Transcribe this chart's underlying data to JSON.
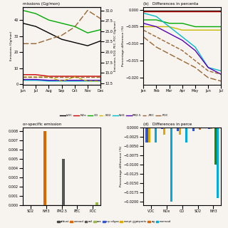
{
  "panel_a_title": "missions (Gg/mon)",
  "panel_b_title": "(b)   Differences in percenta",
  "panel_c_title": "or-specific emission",
  "panel_d_title": "(d)   Differences in perce",
  "months_a": [
    "Jun",
    "Jul",
    "Aug",
    "Sep",
    "Oct",
    "Nov",
    "Dec"
  ],
  "months_b": [
    "Jan",
    "Feb",
    "Mar",
    "Apr",
    "May",
    "Jun",
    "Jul"
  ],
  "voc": [
    38,
    36,
    32,
    28,
    26,
    24,
    27
  ],
  "nox": [
    6,
    6,
    5,
    5,
    5,
    5,
    5
  ],
  "co": [
    46,
    44,
    40,
    38,
    36,
    32,
    34
  ],
  "nh3": [
    2.5,
    2.5,
    2.0,
    2.0,
    2.0,
    2.0,
    2.0
  ],
  "pm25": [
    3.0,
    3.0,
    2.5,
    2.5,
    2.5,
    2.5,
    2.5
  ],
  "so2_right": [
    14,
    14,
    14,
    13,
    14,
    13,
    13
  ],
  "pec_right": [
    14,
    14,
    14,
    14,
    14,
    14,
    14
  ],
  "poc_right": [
    22,
    22,
    23,
    24,
    26,
    30,
    28
  ],
  "b_co": [
    -0.0002,
    -0.0002,
    -0.0002,
    -0.0002,
    -0.0002,
    -0.0002,
    -0.0002
  ],
  "b_so2": [
    -0.0005,
    -0.0005,
    -0.0005,
    -0.0005,
    -0.0005,
    -0.0005,
    -0.0005
  ],
  "b_nox": [
    -0.003,
    -0.003,
    -0.004,
    -0.004,
    -0.005,
    -0.005,
    -0.005
  ],
  "b_voc": [
    -0.005,
    -0.005,
    -0.005,
    -0.006,
    -0.006,
    -0.006,
    -0.006
  ],
  "b_nh3": [
    -0.001,
    -0.002,
    -0.005,
    -0.008,
    -0.011,
    -0.017,
    -0.018
  ],
  "b_pm25": [
    -0.004,
    -0.005,
    -0.007,
    -0.009,
    -0.012,
    -0.017,
    -0.019
  ],
  "b_pec": [
    -0.006,
    -0.008,
    -0.01,
    -0.012,
    -0.015,
    -0.018,
    -0.019
  ],
  "b_poc": [
    -0.008,
    -0.011,
    -0.013,
    -0.015,
    -0.017,
    -0.02,
    -0.021
  ],
  "c_species": [
    "SO2",
    "NH3",
    "PM2.5",
    "PEC",
    "POC"
  ],
  "c_afdust": [
    0.0,
    0.0,
    0.0,
    0.0,
    0.0
  ],
  "c_onroad": [
    0.0,
    0.008,
    0.0,
    0.0,
    0.0
  ],
  "c_rail": [
    0.0,
    0.0,
    0.005,
    0.0,
    0.0
  ],
  "c_rwc": [
    0.0,
    0.0,
    0.0,
    0.0,
    0.0003
  ],
  "d_species": [
    "VOC",
    "NOx",
    "CO",
    "SO2",
    "NH3"
  ],
  "d_np_oilgas": [
    -0.004,
    -0.0005,
    -0.001,
    -0.001,
    -0.0005
  ],
  "d_nonpt": [
    -0.004,
    -0.002,
    -0.002,
    -0.0001,
    -0.0005
  ],
  "d_airports": [
    -0.0002,
    -0.0002,
    -0.0003,
    -0.0002,
    -0.0001
  ],
  "d_ag": [
    -0.0001,
    -0.0001,
    -0.0003,
    -0.0007,
    -0.0001
  ],
  "d_nonroad": [
    -0.004,
    -0.02,
    -0.004,
    -0.0002,
    -0.019
  ],
  "d_green": [
    0.0,
    0.0,
    0.0,
    0.0,
    -0.01
  ],
  "color_voc": "#000000",
  "color_nox": "#cc0000",
  "color_co": "#00aa00",
  "color_so2": "#ccbb00",
  "color_nh3": "#00bbcc",
  "color_pm25": "#5500bb",
  "color_pec": "#996633",
  "color_poc": "#996633",
  "color_afdust": "#444444",
  "color_onroad": "#dd6600",
  "color_rail": "#555555",
  "color_rwc": "#99bb44",
  "color_np_oilgas": "#3355cc",
  "color_nonpt": "#ddaa00",
  "color_airports": "#aaaaaa",
  "color_ag": "#dd6600",
  "color_nonroad_bar": "#00aadd",
  "color_green_bar": "#228800",
  "bg_color": "#f7f3ee"
}
